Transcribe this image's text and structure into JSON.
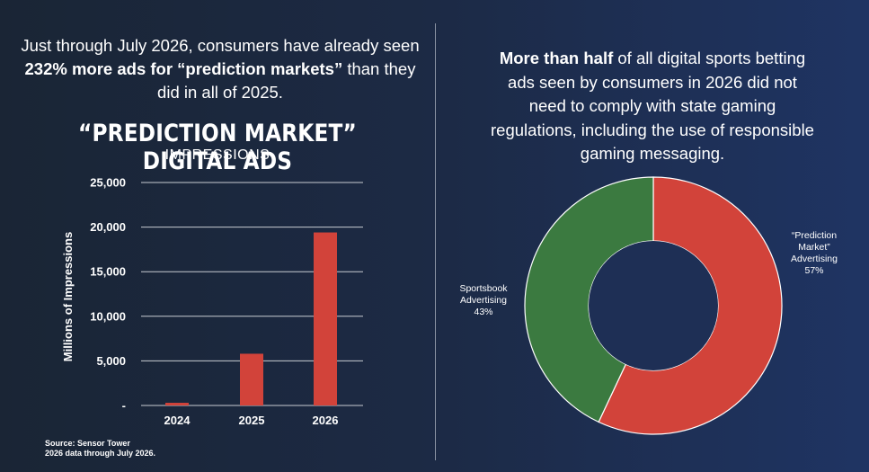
{
  "intro": {
    "part1": "Just through July 2026, consumers have already seen ",
    "bold": "232% more ads for “prediction markets”",
    "part2": " than they did in all of 2025."
  },
  "right_text": {
    "bold": "More than half",
    "rest": " of all digital sports betting ads seen by consumers in 2026 did not need to comply with state gaming regulations, including the use of responsible gaming messaging."
  },
  "source": {
    "line1": "Source: Sensor Tower",
    "line2": "2026 data through July 2026."
  },
  "colors": {
    "red": "#d2433a",
    "green": "#3b7a40",
    "grid": "#c8ccd2",
    "hole": "#1e2f55"
  },
  "chart_data": [
    {
      "type": "bar",
      "title": "“PREDICTION MARKET” DIGITAL ADS",
      "subtitle": "IMPRESSIONS",
      "xlabel": "",
      "ylabel": "Millions of Impressions",
      "categories": [
        "2024",
        "2025",
        "2026"
      ],
      "values": [
        300,
        5800,
        19400
      ],
      "ylim": [
        0,
        25000
      ],
      "yticks": [
        0,
        5000,
        10000,
        15000,
        20000,
        25000
      ],
      "ytick_labels": [
        "-",
        "5,000",
        "10,000",
        "15,000",
        "20,000",
        "25,000"
      ],
      "grid": true
    },
    {
      "type": "pie",
      "donut": true,
      "labels": [
        "“Prediction Market” Advertising",
        "Sportsbook Advertising"
      ],
      "label_lines": [
        [
          "“Prediction",
          "Market”",
          "Advertising"
        ],
        [
          "Sportsbook",
          "Advertising"
        ]
      ],
      "values": [
        57,
        43
      ],
      "value_labels": [
        "57%",
        "43%"
      ]
    }
  ]
}
